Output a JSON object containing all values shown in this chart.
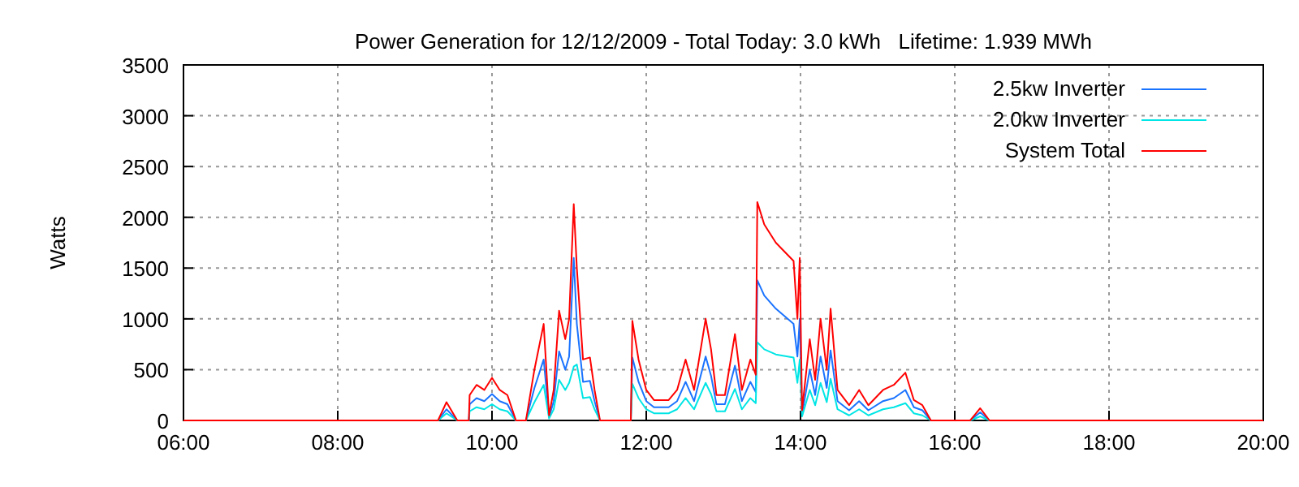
{
  "chart_data": {
    "type": "line",
    "title": "Power Generation for 12/12/2009 - Total Today: 3.0 kWh   Lifetime: 1.939 MWh",
    "ylabel": "Watts",
    "x": [
      6,
      9.3,
      9.41,
      9.55,
      9.7,
      9.71,
      9.8,
      9.9,
      10.0,
      10.1,
      10.2,
      10.31,
      10.44,
      10.55,
      10.67,
      10.74,
      10.8,
      10.87,
      10.95,
      11.0,
      11.06,
      11.1,
      11.18,
      11.27,
      11.33,
      11.4,
      11.8,
      11.82,
      11.9,
      12.0,
      12.1,
      12.29,
      12.4,
      12.51,
      12.62,
      12.77,
      12.84,
      12.91,
      13.02,
      13.15,
      13.24,
      13.35,
      13.42,
      13.44,
      13.53,
      13.68,
      13.91,
      13.96,
      13.99,
      14.02,
      14.12,
      14.19,
      14.26,
      14.34,
      14.39,
      14.48,
      14.63,
      14.76,
      14.88,
      15.07,
      15.21,
      15.36,
      15.47,
      15.58,
      15.69,
      16.2,
      16.33,
      16.45,
      20
    ],
    "series": [
      {
        "name": "2.5kw Inverter",
        "color": "#1a73ff",
        "values": [
          0,
          0,
          110,
          0,
          0,
          160,
          220,
          190,
          260,
          190,
          160,
          0,
          0,
          320,
          600,
          30,
          190,
          680,
          500,
          630,
          1600,
          950,
          380,
          390,
          190,
          0,
          0,
          620,
          380,
          190,
          130,
          130,
          190,
          380,
          190,
          630,
          440,
          160,
          160,
          540,
          190,
          380,
          280,
          1380,
          1230,
          1100,
          950,
          630,
          1000,
          60,
          500,
          250,
          630,
          320,
          690,
          190,
          100,
          190,
          100,
          190,
          220,
          300,
          130,
          100,
          0,
          0,
          80,
          0,
          0
        ]
      },
      {
        "name": "2.0kw Inverter",
        "color": "#00e5e5",
        "values": [
          0,
          0,
          70,
          0,
          0,
          90,
          130,
          110,
          160,
          110,
          90,
          0,
          0,
          180,
          350,
          20,
          110,
          400,
          300,
          370,
          530,
          550,
          220,
          230,
          110,
          0,
          0,
          360,
          220,
          110,
          70,
          70,
          110,
          220,
          110,
          370,
          260,
          90,
          90,
          310,
          110,
          220,
          170,
          770,
          700,
          650,
          620,
          370,
          600,
          40,
          300,
          150,
          370,
          180,
          410,
          110,
          50,
          110,
          50,
          110,
          130,
          170,
          70,
          50,
          0,
          0,
          40,
          0,
          0
        ]
      },
      {
        "name": "System Total",
        "color": "#ff0000",
        "values": [
          0,
          0,
          180,
          0,
          0,
          250,
          350,
          300,
          420,
          300,
          250,
          0,
          0,
          500,
          950,
          50,
          300,
          1080,
          800,
          1000,
          2130,
          1500,
          600,
          620,
          300,
          0,
          0,
          980,
          600,
          300,
          200,
          200,
          300,
          600,
          300,
          1000,
          700,
          250,
          250,
          850,
          300,
          600,
          450,
          2150,
          1930,
          1750,
          1570,
          1000,
          1600,
          100,
          800,
          400,
          1000,
          500,
          1100,
          300,
          150,
          300,
          150,
          300,
          350,
          470,
          200,
          150,
          0,
          0,
          120,
          0,
          0
        ]
      }
    ],
    "xlim": [
      6,
      20
    ],
    "xticks": [
      {
        "value": 6,
        "label": "06:00"
      },
      {
        "value": 8,
        "label": "08:00"
      },
      {
        "value": 10,
        "label": "10:00"
      },
      {
        "value": 12,
        "label": "12:00"
      },
      {
        "value": 14,
        "label": "14:00"
      },
      {
        "value": 16,
        "label": "16:00"
      },
      {
        "value": 18,
        "label": "18:00"
      },
      {
        "value": 20,
        "label": "20:00"
      }
    ],
    "ylim": [
      0,
      3500
    ],
    "yticks": [
      0,
      500,
      1000,
      1500,
      2000,
      2500,
      3000,
      3500
    ],
    "grid": true,
    "legend": "top right",
    "line_style": "solid",
    "marker": "none"
  }
}
